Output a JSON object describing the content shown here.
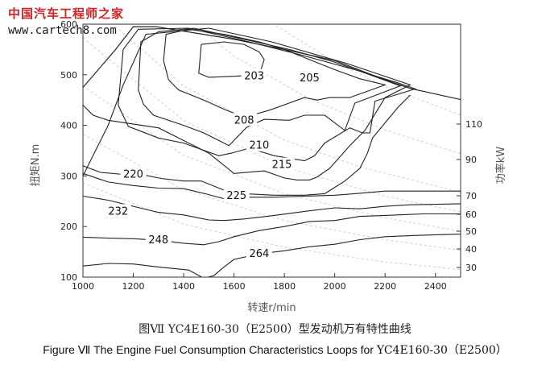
{
  "watermark": {
    "line1": "中国汽车工程师之家",
    "line2": "www.cartech8.com"
  },
  "caption": {
    "cn": "图Ⅶ  YC4E160-30（E2500）型发动机万有特性曲线",
    "en_prefix": "Figure  Ⅶ  The Engine Fuel Consumption Characteristics Loops for ",
    "en_model": "YC4E160-30（E2500）"
  },
  "chart_data": {
    "type": "contour",
    "xlabel": "转速r/min",
    "ylabel": "扭矩N.m",
    "y2label": "功率kW",
    "xlim": [
      1000,
      2500
    ],
    "ylim": [
      100,
      600
    ],
    "xticks": [
      1000,
      1200,
      1400,
      1600,
      1800,
      2000,
      2200,
      2400
    ],
    "yticks": [
      100,
      200,
      300,
      400,
      500,
      600
    ],
    "grid": false,
    "power_labels": [
      110,
      90,
      70,
      60,
      50,
      40,
      30
    ],
    "fuel_contours": [
      {
        "label": "203",
        "label_at": [
          1680,
          497
        ],
        "points": [
          [
            1460,
            503
          ],
          [
            1470,
            560
          ],
          [
            1560,
            565
          ],
          [
            1640,
            560
          ],
          [
            1700,
            545
          ],
          [
            1720,
            530
          ],
          [
            1700,
            500
          ],
          [
            1600,
            497
          ],
          [
            1500,
            495
          ],
          [
            1460,
            503
          ]
        ]
      },
      {
        "label": "205",
        "label_at": [
          1900,
          493
        ],
        "points": [
          [
            1320,
            528
          ],
          [
            1330,
            580
          ],
          [
            1420,
            590
          ],
          [
            1560,
            580
          ],
          [
            1700,
            565
          ],
          [
            1800,
            550
          ],
          [
            1900,
            530
          ],
          [
            2000,
            510
          ],
          [
            2100,
            492
          ],
          [
            2200,
            480
          ],
          [
            2060,
            455
          ],
          [
            1980,
            455
          ],
          [
            1930,
            450
          ],
          [
            1880,
            455
          ],
          [
            1740,
            430
          ],
          [
            1640,
            416
          ],
          [
            1560,
            432
          ],
          [
            1480,
            450
          ],
          [
            1380,
            470
          ],
          [
            1340,
            490
          ],
          [
            1320,
            528
          ]
        ]
      },
      {
        "label": "208",
        "label_at": [
          1640,
          410
        ],
        "points": [
          [
            1220,
            470
          ],
          [
            1230,
            565
          ],
          [
            1300,
            585
          ],
          [
            1440,
            592
          ],
          [
            1640,
            570
          ],
          [
            1820,
            550
          ],
          [
            2000,
            525
          ],
          [
            2140,
            500
          ],
          [
            2260,
            478
          ],
          [
            2080,
            444
          ],
          [
            2040,
            390
          ],
          [
            1960,
            420
          ],
          [
            1880,
            420
          ],
          [
            1820,
            410
          ],
          [
            1720,
            412
          ],
          [
            1650,
            396
          ],
          [
            1580,
            360
          ],
          [
            1540,
            370
          ],
          [
            1480,
            385
          ],
          [
            1400,
            400
          ],
          [
            1280,
            420
          ],
          [
            1240,
            442
          ],
          [
            1220,
            470
          ]
        ]
      },
      {
        "label": "210",
        "label_at": [
          1700,
          360
        ],
        "points": [
          [
            1140,
            440
          ],
          [
            1160,
            550
          ],
          [
            1220,
            590
          ],
          [
            1420,
            592
          ],
          [
            1660,
            565
          ],
          [
            1860,
            540
          ],
          [
            2080,
            510
          ],
          [
            2250,
            484
          ],
          [
            2320,
            472
          ],
          [
            2160,
            448
          ],
          [
            2140,
            385
          ],
          [
            2110,
            385
          ],
          [
            2060,
            395
          ],
          [
            1960,
            365
          ],
          [
            1920,
            340
          ],
          [
            1880,
            330
          ],
          [
            1760,
            340
          ],
          [
            1660,
            355
          ],
          [
            1590,
            345
          ],
          [
            1540,
            340
          ],
          [
            1400,
            365
          ],
          [
            1300,
            375
          ],
          [
            1180,
            398
          ],
          [
            1140,
            440
          ]
        ]
      },
      {
        "label": "215",
        "label_at": [
          1790,
          322
        ],
        "points": [
          [
            1000,
            300
          ],
          [
            1050,
            350
          ],
          [
            1100,
            400
          ],
          [
            1160,
            480
          ],
          [
            1250,
            580
          ],
          [
            1500,
            592
          ],
          [
            1750,
            565
          ],
          [
            2050,
            522
          ],
          [
            2300,
            480
          ],
          [
            2200,
            455
          ],
          [
            2120,
            390
          ],
          [
            2060,
            360
          ],
          [
            1980,
            315
          ],
          [
            1930,
            298
          ],
          [
            1900,
            292
          ],
          [
            1850,
            292
          ],
          [
            1800,
            296
          ],
          [
            1720,
            310
          ],
          [
            1600,
            305
          ],
          [
            1500,
            345
          ],
          [
            1300,
            395
          ],
          [
            1100,
            410
          ],
          [
            1040,
            420
          ],
          [
            1000,
            440
          ]
        ]
      },
      {
        "label": "220",
        "label_at": [
          1200,
          303
        ],
        "points": [
          [
            1000,
            320
          ],
          [
            1070,
            307
          ],
          [
            1160,
            303
          ],
          [
            1240,
            302
          ],
          [
            1310,
            295
          ],
          [
            1400,
            290
          ],
          [
            1470,
            290
          ],
          [
            1560,
            272
          ],
          [
            1640,
            265
          ],
          [
            1760,
            262
          ],
          [
            1880,
            262
          ],
          [
            1960,
            265
          ],
          [
            2040,
            290
          ],
          [
            2100,
            315
          ],
          [
            2130,
            345
          ],
          [
            2150,
            375
          ],
          [
            2200,
            405
          ],
          [
            2250,
            435
          ],
          [
            2300,
            460
          ]
        ]
      },
      {
        "label": "225",
        "label_at": [
          1610,
          261
        ],
        "points": [
          [
            1000,
            305
          ],
          [
            1100,
            288
          ],
          [
            1200,
            281
          ],
          [
            1300,
            276
          ],
          [
            1400,
            275
          ],
          [
            1500,
            263
          ],
          [
            1560,
            255
          ],
          [
            1640,
            258
          ],
          [
            1760,
            258
          ],
          [
            1880,
            260
          ],
          [
            2000,
            262
          ],
          [
            2080,
            265
          ],
          [
            2200,
            270
          ],
          [
            2350,
            270
          ],
          [
            2500,
            270
          ]
        ]
      },
      {
        "label": "232",
        "label_at": [
          1140,
          230
        ],
        "points": [
          [
            1000,
            260
          ],
          [
            1100,
            252
          ],
          [
            1200,
            240
          ],
          [
            1300,
            228
          ],
          [
            1400,
            223
          ],
          [
            1500,
            213
          ],
          [
            1560,
            212
          ],
          [
            1640,
            215
          ],
          [
            1760,
            222
          ],
          [
            1880,
            230
          ],
          [
            2000,
            237
          ],
          [
            2100,
            235
          ],
          [
            2200,
            240
          ],
          [
            2300,
            243
          ],
          [
            2500,
            245
          ]
        ]
      },
      {
        "label": "248",
        "label_at": [
          1300,
          173
        ],
        "points": [
          [
            1000,
            179
          ],
          [
            1100,
            177
          ],
          [
            1200,
            176
          ],
          [
            1300,
            173
          ],
          [
            1400,
            167
          ],
          [
            1480,
            164
          ],
          [
            1540,
            170
          ],
          [
            1600,
            180
          ],
          [
            1700,
            192
          ],
          [
            1800,
            200
          ],
          [
            1900,
            210
          ],
          [
            2000,
            212
          ],
          [
            2100,
            220
          ],
          [
            2200,
            222
          ],
          [
            2350,
            225
          ],
          [
            2500,
            225
          ]
        ]
      },
      {
        "label": "264",
        "label_at": [
          1700,
          146
        ],
        "points": [
          [
            1000,
            122
          ],
          [
            1100,
            127
          ],
          [
            1200,
            126
          ],
          [
            1300,
            120
          ],
          [
            1420,
            114
          ],
          [
            1480,
            98
          ],
          [
            1520,
            103
          ],
          [
            1560,
            120
          ],
          [
            1600,
            135
          ],
          [
            1700,
            146
          ],
          [
            1800,
            152
          ],
          [
            1900,
            160
          ],
          [
            2000,
            165
          ],
          [
            2100,
            174
          ],
          [
            2200,
            180
          ],
          [
            2350,
            183
          ],
          [
            2500,
            185
          ]
        ]
      }
    ],
    "external_characteristic": [
      [
        1000,
        475
      ],
      [
        1130,
        550
      ],
      [
        1200,
        595
      ],
      [
        1290,
        595
      ],
      [
        1600,
        570
      ],
      [
        1800,
        550
      ],
      [
        2000,
        528
      ],
      [
        2200,
        490
      ],
      [
        2300,
        473
      ],
      [
        2500,
        451
      ]
    ],
    "power_curves": [
      {
        "kw": 110,
        "points": [
          [
            1400,
            750
          ],
          [
            1700,
            618
          ],
          [
            2000,
            525
          ],
          [
            2200,
            477
          ],
          [
            2500,
            420
          ]
        ]
      },
      {
        "kw": 90,
        "points": [
          [
            1300,
            661
          ],
          [
            1600,
            537
          ],
          [
            1900,
            452
          ],
          [
            2200,
            391
          ],
          [
            2500,
            344
          ]
        ]
      },
      {
        "kw": 70,
        "points": [
          [
            1100,
            608
          ],
          [
            1400,
            478
          ],
          [
            1800,
            371
          ],
          [
            2100,
            318
          ],
          [
            2500,
            268
          ]
        ]
      },
      {
        "kw": 60,
        "points": [
          [
            1000,
            573
          ],
          [
            1400,
            409
          ],
          [
            1800,
            318
          ],
          [
            2200,
            260
          ],
          [
            2500,
            229
          ]
        ]
      },
      {
        "kw": 50,
        "points": [
          [
            1000,
            478
          ],
          [
            1400,
            341
          ],
          [
            1800,
            265
          ],
          [
            2200,
            217
          ],
          [
            2500,
            191
          ]
        ]
      },
      {
        "kw": 40,
        "points": [
          [
            1000,
            382
          ],
          [
            1400,
            273
          ],
          [
            1800,
            212
          ],
          [
            2200,
            174
          ],
          [
            2500,
            153
          ]
        ]
      },
      {
        "kw": 30,
        "points": [
          [
            1000,
            286
          ],
          [
            1400,
            205
          ],
          [
            1800,
            159
          ],
          [
            2200,
            130
          ],
          [
            2500,
            115
          ]
        ]
      }
    ]
  }
}
